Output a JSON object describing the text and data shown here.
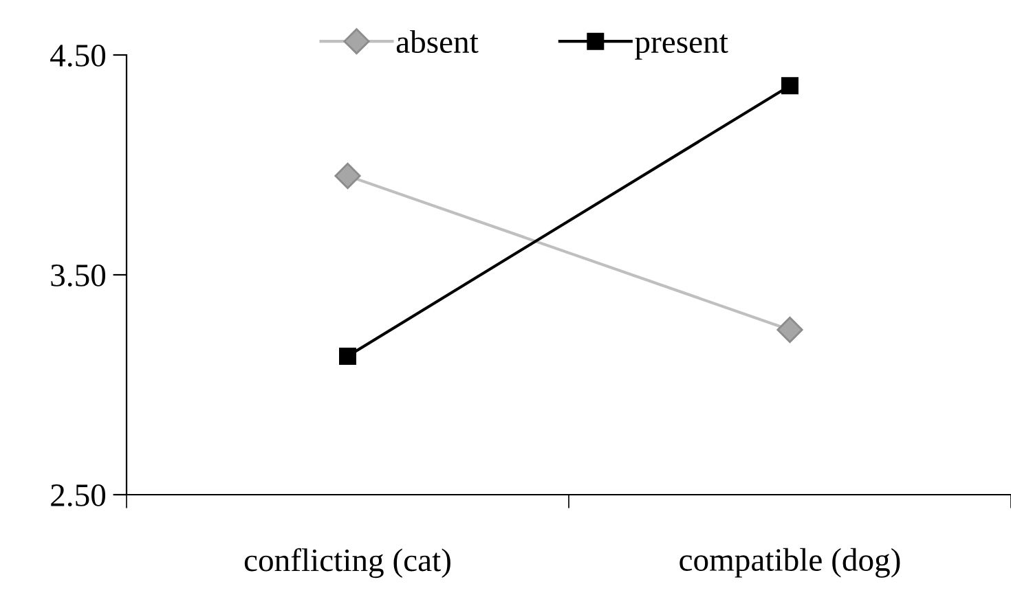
{
  "chart_data": {
    "type": "line",
    "categories": [
      "conflicting (cat)",
      "compatible (dog)"
    ],
    "series": [
      {
        "name": "absent",
        "color": "#bfbfbf",
        "marker": "diamond",
        "values": [
          3.95,
          3.25
        ]
      },
      {
        "name": "present",
        "color": "#000000",
        "marker": "square",
        "values": [
          3.13,
          4.36
        ]
      }
    ],
    "ylim": [
      2.5,
      4.5
    ],
    "yticks": [
      {
        "value": 2.5,
        "label": "2.50"
      },
      {
        "value": 3.5,
        "label": "3.50"
      },
      {
        "value": 4.5,
        "label": "4.50"
      }
    ],
    "grid": false,
    "legend": "top"
  }
}
